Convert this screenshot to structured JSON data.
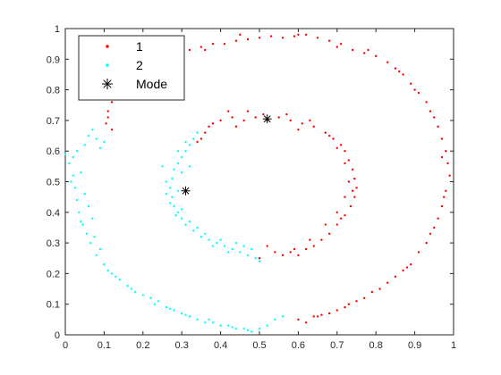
{
  "chart_data": {
    "type": "scatter",
    "xlim": [
      0,
      1
    ],
    "ylim": [
      0,
      1
    ],
    "xticks": [
      0,
      0.1,
      0.2,
      0.3,
      0.4,
      0.5,
      0.6,
      0.7,
      0.8,
      0.9,
      1
    ],
    "xtick_labels": [
      "0",
      "0.1",
      "0.2",
      "0.3",
      "0.4",
      "0.5",
      "0.6",
      "0.7",
      "0.8",
      "0.9",
      "1"
    ],
    "yticks": [
      0,
      0.1,
      0.2,
      0.3,
      0.4,
      0.5,
      0.6,
      0.7,
      0.8,
      0.9,
      1
    ],
    "ytick_labels": [
      "0",
      "0.1",
      "0.2",
      "0.3",
      "0.4",
      "0.5",
      "0.6",
      "0.7",
      "0.8",
      "0.9",
      "1"
    ],
    "grid": false,
    "legend_position": "top-left",
    "series": [
      {
        "name": "1",
        "color": "#ff0000",
        "marker": "dot",
        "points": [
          [
            0.6,
            0.05
          ],
          [
            0.62,
            0.04
          ],
          [
            0.65,
            0.06
          ],
          [
            0.68,
            0.07
          ],
          [
            0.7,
            0.08
          ],
          [
            0.72,
            0.09
          ],
          [
            0.75,
            0.11
          ],
          [
            0.77,
            0.12
          ],
          [
            0.79,
            0.14
          ],
          [
            0.81,
            0.15
          ],
          [
            0.83,
            0.17
          ],
          [
            0.85,
            0.19
          ],
          [
            0.87,
            0.21
          ],
          [
            0.89,
            0.23
          ],
          [
            0.91,
            0.27
          ],
          [
            0.93,
            0.3
          ],
          [
            0.95,
            0.35
          ],
          [
            0.96,
            0.38
          ],
          [
            0.97,
            0.42
          ],
          [
            0.98,
            0.47
          ],
          [
            0.99,
            0.52
          ],
          [
            0.985,
            0.56
          ],
          [
            0.98,
            0.6
          ],
          [
            0.97,
            0.64
          ],
          [
            0.96,
            0.68
          ],
          [
            0.95,
            0.71
          ],
          [
            0.93,
            0.76
          ],
          [
            0.91,
            0.79
          ],
          [
            0.89,
            0.82
          ],
          [
            0.87,
            0.85
          ],
          [
            0.85,
            0.87
          ],
          [
            0.83,
            0.89
          ],
          [
            0.8,
            0.91
          ],
          [
            0.77,
            0.92
          ],
          [
            0.74,
            0.93
          ],
          [
            0.71,
            0.95
          ],
          [
            0.68,
            0.96
          ],
          [
            0.65,
            0.97
          ],
          [
            0.62,
            0.98
          ],
          [
            0.59,
            0.975
          ],
          [
            0.56,
            0.97
          ],
          [
            0.53,
            0.975
          ],
          [
            0.5,
            0.97
          ],
          [
            0.47,
            0.965
          ],
          [
            0.44,
            0.96
          ],
          [
            0.41,
            0.95
          ],
          [
            0.38,
            0.95
          ],
          [
            0.35,
            0.94
          ],
          [
            0.32,
            0.93
          ],
          [
            0.29,
            0.92
          ],
          [
            0.26,
            0.9
          ],
          [
            0.23,
            0.89
          ],
          [
            0.21,
            0.87
          ],
          [
            0.19,
            0.86
          ],
          [
            0.17,
            0.85
          ],
          [
            0.15,
            0.83
          ],
          [
            0.13,
            0.8
          ],
          [
            0.12,
            0.76
          ],
          [
            0.11,
            0.73
          ],
          [
            0.105,
            0.69
          ],
          [
            0.12,
            0.67
          ],
          [
            0.11,
            0.71
          ],
          [
            0.64,
            0.06
          ],
          [
            0.73,
            0.1
          ],
          [
            0.88,
            0.22
          ],
          [
            0.94,
            0.33
          ],
          [
            0.975,
            0.45
          ],
          [
            0.97,
            0.58
          ],
          [
            0.94,
            0.73
          ],
          [
            0.9,
            0.8
          ],
          [
            0.86,
            0.86
          ],
          [
            0.78,
            0.93
          ],
          [
            0.7,
            0.94
          ],
          [
            0.6,
            0.98
          ],
          [
            0.45,
            0.98
          ],
          [
            0.36,
            0.93
          ],
          [
            0.27,
            0.91
          ],
          [
            0.22,
            0.88
          ],
          [
            0.16,
            0.84
          ],
          [
            0.66,
            0.065
          ],
          [
            0.56,
            0.26
          ],
          [
            0.58,
            0.27
          ],
          [
            0.6,
            0.26
          ],
          [
            0.62,
            0.28
          ],
          [
            0.64,
            0.29
          ],
          [
            0.66,
            0.31
          ],
          [
            0.68,
            0.33
          ],
          [
            0.7,
            0.36
          ],
          [
            0.72,
            0.39
          ],
          [
            0.735,
            0.42
          ],
          [
            0.745,
            0.45
          ],
          [
            0.75,
            0.48
          ],
          [
            0.745,
            0.51
          ],
          [
            0.74,
            0.54
          ],
          [
            0.73,
            0.57
          ],
          [
            0.72,
            0.6
          ],
          [
            0.71,
            0.62
          ],
          [
            0.69,
            0.64
          ],
          [
            0.67,
            0.66
          ],
          [
            0.64,
            0.68
          ],
          [
            0.61,
            0.69
          ],
          [
            0.58,
            0.7
          ],
          [
            0.55,
            0.71
          ],
          [
            0.52,
            0.7
          ],
          [
            0.49,
            0.71
          ],
          [
            0.46,
            0.7
          ],
          [
            0.43,
            0.71
          ],
          [
            0.4,
            0.7
          ],
          [
            0.38,
            0.69
          ],
          [
            0.36,
            0.66
          ],
          [
            0.35,
            0.64
          ],
          [
            0.34,
            0.63
          ],
          [
            0.37,
            0.68
          ],
          [
            0.42,
            0.73
          ],
          [
            0.47,
            0.73
          ],
          [
            0.51,
            0.72
          ],
          [
            0.57,
            0.72
          ],
          [
            0.63,
            0.7
          ],
          [
            0.68,
            0.65
          ],
          [
            0.7,
            0.61
          ],
          [
            0.72,
            0.56
          ],
          [
            0.73,
            0.5
          ],
          [
            0.72,
            0.45
          ],
          [
            0.7,
            0.4
          ],
          [
            0.67,
            0.36
          ],
          [
            0.63,
            0.31
          ],
          [
            0.59,
            0.28
          ],
          [
            0.54,
            0.27
          ],
          [
            0.52,
            0.29
          ],
          [
            0.5,
            0.25
          ],
          [
            0.71,
            0.38
          ],
          [
            0.74,
            0.47
          ],
          [
            0.6,
            0.67
          ],
          [
            0.44,
            0.68
          ]
        ]
      },
      {
        "name": "2",
        "color": "#00ffff",
        "marker": "dot",
        "points": [
          [
            0.0,
            0.59
          ],
          [
            0.01,
            0.56
          ],
          [
            0.02,
            0.52
          ],
          [
            0.025,
            0.48
          ],
          [
            0.03,
            0.44
          ],
          [
            0.035,
            0.4
          ],
          [
            0.045,
            0.36
          ],
          [
            0.055,
            0.33
          ],
          [
            0.065,
            0.3
          ],
          [
            0.08,
            0.26
          ],
          [
            0.1,
            0.23
          ],
          [
            0.12,
            0.2
          ],
          [
            0.14,
            0.18
          ],
          [
            0.16,
            0.16
          ],
          [
            0.18,
            0.14
          ],
          [
            0.2,
            0.13
          ],
          [
            0.22,
            0.12
          ],
          [
            0.24,
            0.11
          ],
          [
            0.26,
            0.09
          ],
          [
            0.28,
            0.08
          ],
          [
            0.3,
            0.07
          ],
          [
            0.32,
            0.06
          ],
          [
            0.34,
            0.05
          ],
          [
            0.36,
            0.04
          ],
          [
            0.38,
            0.04
          ],
          [
            0.4,
            0.03
          ],
          [
            0.42,
            0.03
          ],
          [
            0.44,
            0.02
          ],
          [
            0.46,
            0.02
          ],
          [
            0.48,
            0.01
          ],
          [
            0.5,
            0.02
          ],
          [
            0.52,
            0.03
          ],
          [
            0.54,
            0.05
          ],
          [
            0.56,
            0.06
          ],
          [
            0.02,
            0.58
          ],
          [
            0.04,
            0.53
          ],
          [
            0.05,
            0.46
          ],
          [
            0.06,
            0.42
          ],
          [
            0.07,
            0.38
          ],
          [
            0.09,
            0.28
          ],
          [
            0.11,
            0.21
          ],
          [
            0.13,
            0.19
          ],
          [
            0.17,
            0.15
          ],
          [
            0.23,
            0.1
          ],
          [
            0.27,
            0.085
          ],
          [
            0.31,
            0.065
          ],
          [
            0.37,
            0.05
          ],
          [
            0.43,
            0.025
          ],
          [
            0.47,
            0.015
          ],
          [
            0.05,
            0.62
          ],
          [
            0.06,
            0.65
          ],
          [
            0.07,
            0.67
          ],
          [
            0.08,
            0.64
          ],
          [
            0.09,
            0.61
          ],
          [
            0.1,
            0.63
          ],
          [
            0.03,
            0.6
          ],
          [
            0.015,
            0.5
          ],
          [
            0.04,
            0.37
          ],
          [
            0.075,
            0.32
          ],
          [
            0.33,
            0.64
          ],
          [
            0.32,
            0.62
          ],
          [
            0.31,
            0.6
          ],
          [
            0.3,
            0.58
          ],
          [
            0.29,
            0.56
          ],
          [
            0.28,
            0.54
          ],
          [
            0.275,
            0.51
          ],
          [
            0.27,
            0.48
          ],
          [
            0.275,
            0.45
          ],
          [
            0.28,
            0.42
          ],
          [
            0.29,
            0.4
          ],
          [
            0.3,
            0.38
          ],
          [
            0.31,
            0.36
          ],
          [
            0.33,
            0.34
          ],
          [
            0.35,
            0.32
          ],
          [
            0.37,
            0.31
          ],
          [
            0.39,
            0.3
          ],
          [
            0.41,
            0.29
          ],
          [
            0.43,
            0.28
          ],
          [
            0.45,
            0.27
          ],
          [
            0.47,
            0.26
          ],
          [
            0.49,
            0.25
          ],
          [
            0.5,
            0.24
          ],
          [
            0.34,
            0.66
          ],
          [
            0.32,
            0.55
          ],
          [
            0.26,
            0.5
          ],
          [
            0.27,
            0.43
          ],
          [
            0.3,
            0.41
          ],
          [
            0.32,
            0.37
          ],
          [
            0.36,
            0.33
          ],
          [
            0.4,
            0.31
          ],
          [
            0.44,
            0.3
          ],
          [
            0.48,
            0.28
          ],
          [
            0.31,
            0.63
          ],
          [
            0.3,
            0.53
          ],
          [
            0.29,
            0.47
          ],
          [
            0.285,
            0.39
          ],
          [
            0.34,
            0.35
          ],
          [
            0.38,
            0.29
          ],
          [
            0.42,
            0.27
          ],
          [
            0.46,
            0.29
          ],
          [
            0.25,
            0.55
          ],
          [
            0.29,
            0.6
          ],
          [
            0.26,
            0.46
          ]
        ]
      },
      {
        "name": "Mode",
        "color": "#000000",
        "marker": "asterisk",
        "points": [
          [
            0.52,
            0.705
          ],
          [
            0.31,
            0.47
          ]
        ]
      }
    ]
  }
}
